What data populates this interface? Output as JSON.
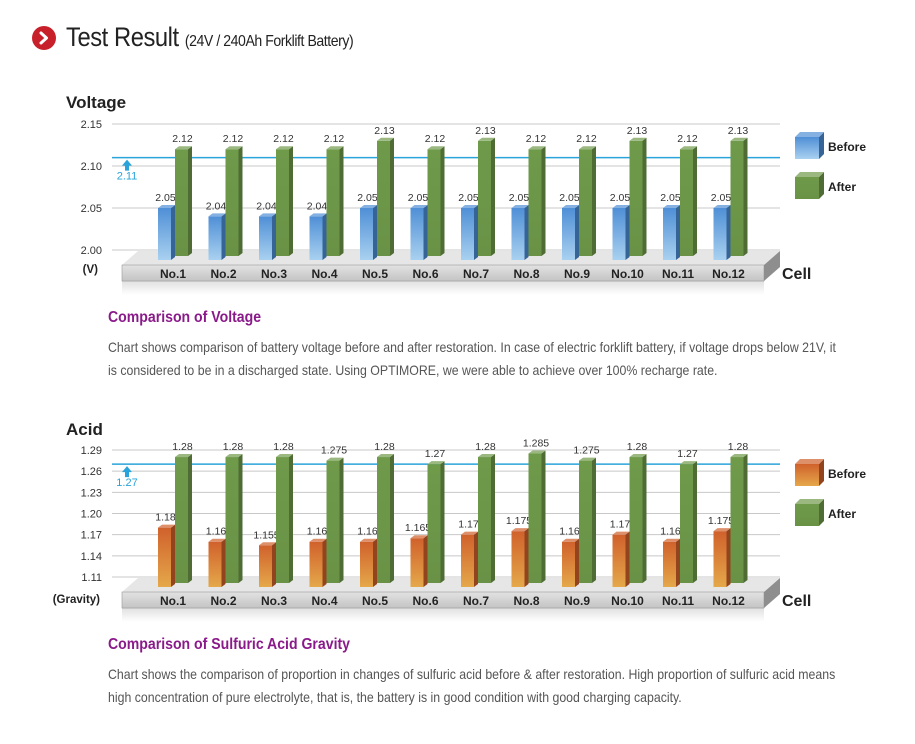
{
  "header": {
    "title": "Test Result",
    "subtitle": "(24V / 240Ah Forklift Battery)",
    "icon": "chevron-right-circle-icon"
  },
  "sections": [
    {
      "heading": "Comparison of Voltage",
      "description": "Chart shows comparison of  battery voltage before and after restoration. In case of electric forklift battery, if voltage drops below 21V, it is considered to be in a discharged state.   Using OPTIMORE,  we were able to achieve over 100% recharge rate."
    },
    {
      "heading": "Comparison of Sulfuric Acid Gravity",
      "description": "Chart shows the comparison of proportion in changes of sulfuric acid before & after restoration.   High proportion of sulfuric acid means high concentration of pure electrolyte, that is, the battery is in good condition with good charging capacity."
    }
  ],
  "chart_data": [
    {
      "type": "bar",
      "title": "Voltage",
      "ylabel": "(V)",
      "xlabel": "Cell",
      "categories": [
        "No.1",
        "No.2",
        "No.3",
        "No.4",
        "No.5",
        "No.6",
        "No.7",
        "No.8",
        "No.9",
        "No.10",
        "No.11",
        "No.12"
      ],
      "series": [
        {
          "name": "Before",
          "color": "#4f8fd6",
          "values": [
            2.05,
            2.04,
            2.04,
            2.04,
            2.05,
            2.05,
            2.05,
            2.05,
            2.05,
            2.05,
            2.05,
            2.05
          ],
          "labels": [
            "2.05",
            "2.04",
            "2.04",
            "2.04",
            "2.05",
            "2.05",
            "2.05",
            "2.05",
            "2.05",
            "2.05",
            "2.05",
            "2.05"
          ]
        },
        {
          "name": "After",
          "color": "#6f9a4a",
          "values": [
            2.12,
            2.12,
            2.12,
            2.12,
            2.13,
            2.12,
            2.13,
            2.12,
            2.12,
            2.13,
            2.12,
            2.13
          ],
          "labels": [
            "2.12",
            "2.12",
            "2.12",
            "2.12",
            "2.13",
            "2.12",
            "2.13",
            "2.12",
            "2.12",
            "2.13",
            "2.12",
            "2.13"
          ]
        }
      ],
      "yticks": [
        "2.15",
        "2.10",
        "2.05",
        "2.00"
      ],
      "ytick_values": [
        2.15,
        2.1,
        2.05,
        2.0
      ],
      "ylim": [
        2.0,
        2.15
      ],
      "reference_line": {
        "value": 2.11,
        "label": "2.11",
        "color": "#29a3d9"
      },
      "grid": true,
      "legend_position": "right"
    },
    {
      "type": "bar",
      "title": "Acid",
      "ylabel": "(Gravity)",
      "xlabel": "Cell",
      "categories": [
        "No.1",
        "No.2",
        "No.3",
        "No.4",
        "No.5",
        "No.6",
        "No.7",
        "No.8",
        "No.9",
        "No.10",
        "No.11",
        "No.12"
      ],
      "series": [
        {
          "name": "Before",
          "color": "#d0612c",
          "values": [
            1.18,
            1.16,
            1.155,
            1.16,
            1.16,
            1.165,
            1.17,
            1.175,
            1.16,
            1.17,
            1.16,
            1.175
          ],
          "labels": [
            "1.18",
            "1.16",
            "1.155",
            "1.16",
            "1.16",
            "1.165",
            "1.17",
            "1.175",
            "1.16",
            "1.17",
            "1.16",
            "1.175"
          ]
        },
        {
          "name": "After",
          "color": "#6f9a4a",
          "values": [
            1.28,
            1.28,
            1.28,
            1.275,
            1.28,
            1.27,
            1.28,
            1.285,
            1.275,
            1.28,
            1.27,
            1.28
          ],
          "labels": [
            "1.28",
            "1.28",
            "1.28",
            "1.275",
            "1.28",
            "1.27",
            "1.28",
            "1.285",
            "1.275",
            "1.28",
            "1.27",
            "1.28"
          ]
        }
      ],
      "yticks": [
        "1.29",
        "1.26",
        "1.23",
        "1.20",
        "1.17",
        "1.14",
        "1.11"
      ],
      "ytick_values": [
        1.29,
        1.26,
        1.23,
        1.2,
        1.17,
        1.14,
        1.11
      ],
      "ylim": [
        1.11,
        1.29
      ],
      "reference_line": {
        "value": 1.27,
        "label": "1.27",
        "color": "#29a3d9"
      },
      "grid": true,
      "legend_position": "right"
    }
  ]
}
